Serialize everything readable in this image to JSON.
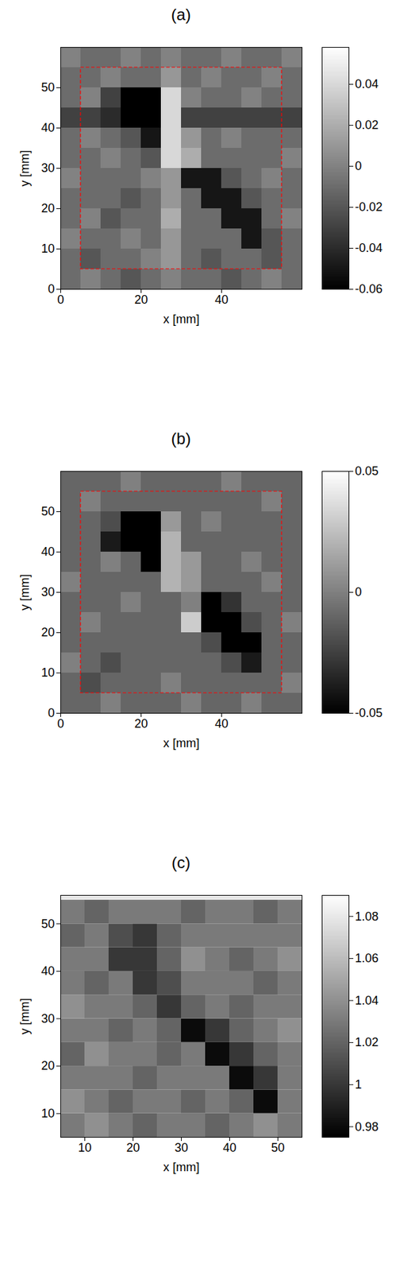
{
  "chart_data": [
    {
      "type": "heatmap",
      "title": "(a)",
      "x_label": "x [mm]",
      "y_label": "y [mm]",
      "xlim": [
        0,
        60
      ],
      "ylim": [
        0,
        60
      ],
      "xticks": [
        0,
        20,
        40
      ],
      "yticks": [
        0,
        10,
        20,
        30,
        40,
        50
      ],
      "color": "gray",
      "clim": [
        -0.06,
        0.058
      ],
      "cticks": [
        -0.06,
        -0.04,
        -0.02,
        0,
        0.02,
        0.04
      ],
      "rectangle": {
        "x": [
          5,
          55
        ],
        "y": [
          5,
          55
        ],
        "color": "#ff0000",
        "line_style": "dashed"
      },
      "x_edges": [
        0,
        5,
        10,
        15,
        20,
        25,
        30,
        35,
        40,
        45,
        50,
        55,
        60
      ],
      "y_edges": [
        0,
        5,
        10,
        15,
        20,
        25,
        30,
        35,
        40,
        45,
        50,
        55,
        60
      ],
      "z": [
        [
          -0.01,
          0,
          -0.01,
          -0.02,
          -0.01,
          0,
          -0.01,
          -0.01,
          -0.02,
          -0.01,
          0,
          -0.01
        ],
        [
          -0.01,
          -0.02,
          -0.01,
          -0.01,
          0,
          0.01,
          -0.01,
          -0.02,
          -0.01,
          -0.01,
          -0.02,
          -0.01
        ],
        [
          0,
          -0.01,
          -0.01,
          0,
          -0.01,
          0.01,
          -0.01,
          -0.01,
          -0.01,
          -0.05,
          -0.02,
          -0.01
        ],
        [
          -0.01,
          0,
          -0.02,
          -0.01,
          -0.01,
          0.02,
          -0.01,
          -0.01,
          -0.05,
          -0.05,
          -0.01,
          0
        ],
        [
          -0.01,
          -0.01,
          -0.01,
          -0.02,
          -0.01,
          0.01,
          -0.01,
          -0.05,
          -0.05,
          -0.02,
          -0.01,
          -0.01
        ],
        [
          0,
          -0.01,
          -0.01,
          -0.01,
          0,
          0.01,
          -0.05,
          -0.05,
          -0.02,
          -0.01,
          0,
          -0.01
        ],
        [
          -0.01,
          -0.01,
          0,
          -0.01,
          -0.02,
          0.04,
          0.02,
          -0.01,
          -0.01,
          -0.01,
          -0.01,
          0
        ],
        [
          -0.01,
          0,
          -0.01,
          -0.02,
          -0.05,
          0.04,
          0.01,
          -0.01,
          0,
          -0.01,
          -0.01,
          -0.01
        ],
        [
          -0.03,
          -0.03,
          -0.04,
          -0.06,
          -0.06,
          0.04,
          -0.03,
          -0.03,
          -0.03,
          -0.03,
          -0.03,
          -0.03
        ],
        [
          -0.01,
          0,
          -0.03,
          -0.06,
          -0.06,
          0.04,
          0,
          -0.01,
          -0.01,
          0,
          -0.01,
          -0.01
        ],
        [
          -0.01,
          -0.01,
          0,
          -0.01,
          -0.01,
          0.01,
          -0.01,
          0,
          -0.01,
          -0.01,
          0,
          -0.01
        ],
        [
          0,
          -0.01,
          -0.01,
          0,
          -0.01,
          0,
          -0.01,
          -0.01,
          0,
          -0.01,
          -0.01,
          0
        ]
      ]
    },
    {
      "type": "heatmap",
      "title": "(b)",
      "x_label": "x [mm]",
      "y_label": "y [mm]",
      "xlim": [
        0,
        60
      ],
      "ylim": [
        0,
        60
      ],
      "xticks": [
        0,
        20,
        40
      ],
      "yticks": [
        0,
        10,
        20,
        30,
        40,
        50
      ],
      "color": "gray",
      "clim": [
        -0.05,
        0.05
      ],
      "cticks": [
        -0.05,
        0,
        0.05
      ],
      "rectangle": {
        "x": [
          5,
          55
        ],
        "y": [
          5,
          55
        ],
        "color": "#ff0000",
        "line_style": "dashed"
      },
      "x_edges": [
        0,
        5,
        10,
        15,
        20,
        25,
        30,
        35,
        40,
        45,
        50,
        55,
        60
      ],
      "y_edges": [
        0,
        5,
        10,
        15,
        20,
        25,
        30,
        35,
        40,
        45,
        50,
        55,
        60
      ],
      "z": [
        [
          -0.01,
          -0.01,
          0,
          -0.01,
          -0.01,
          -0.01,
          0,
          -0.01,
          -0.01,
          0,
          -0.01,
          -0.01
        ],
        [
          -0.01,
          -0.02,
          -0.01,
          -0.01,
          -0.01,
          0,
          -0.01,
          -0.01,
          -0.01,
          -0.01,
          -0.01,
          0
        ],
        [
          0,
          -0.01,
          -0.02,
          -0.01,
          -0.01,
          -0.01,
          -0.01,
          -0.01,
          -0.02,
          -0.04,
          -0.01,
          -0.01
        ],
        [
          -0.01,
          -0.01,
          -0.01,
          -0.01,
          -0.01,
          -0.01,
          -0.01,
          -0.02,
          -0.05,
          -0.05,
          -0.01,
          -0.01
        ],
        [
          -0.01,
          0,
          -0.01,
          -0.01,
          -0.01,
          -0.01,
          0.03,
          -0.05,
          -0.05,
          -0.02,
          -0.01,
          0
        ],
        [
          -0.01,
          -0.01,
          -0.01,
          0,
          -0.01,
          -0.01,
          0,
          -0.05,
          -0.03,
          -0.01,
          -0.01,
          -0.01
        ],
        [
          0,
          -0.01,
          -0.01,
          -0.01,
          -0.01,
          0.02,
          0.01,
          -0.01,
          -0.01,
          -0.01,
          0,
          -0.01
        ],
        [
          -0.01,
          -0.01,
          0,
          -0.01,
          -0.05,
          0.02,
          0.01,
          -0.01,
          -0.01,
          0,
          -0.01,
          -0.01
        ],
        [
          -0.01,
          -0.01,
          -0.04,
          -0.05,
          -0.05,
          0.02,
          -0.01,
          -0.01,
          -0.01,
          -0.01,
          -0.01,
          -0.01
        ],
        [
          -0.01,
          -0.01,
          -0.02,
          -0.05,
          -0.05,
          0.01,
          -0.01,
          0,
          -0.01,
          -0.01,
          -0.01,
          -0.01
        ],
        [
          -0.01,
          0,
          -0.01,
          -0.01,
          -0.01,
          -0.01,
          -0.01,
          -0.01,
          -0.01,
          -0.01,
          0,
          -0.01
        ],
        [
          -0.01,
          -0.01,
          -0.01,
          0,
          -0.01,
          -0.01,
          -0.01,
          -0.01,
          0,
          -0.01,
          -0.01,
          -0.01
        ]
      ]
    },
    {
      "type": "heatmap",
      "title": "(c)",
      "x_label": "x [mm]",
      "y_label": "y [mm]",
      "xlim": [
        5,
        55
      ],
      "ylim": [
        5,
        56
      ],
      "xticks": [
        10,
        20,
        30,
        40,
        50
      ],
      "yticks": [
        10,
        20,
        30,
        40,
        50
      ],
      "color": "gray",
      "clim": [
        0.975,
        1.09
      ],
      "cticks": [
        0.98,
        1,
        1.02,
        1.04,
        1.06,
        1.08
      ],
      "x_edges": [
        5,
        10,
        15,
        20,
        25,
        30,
        35,
        40,
        45,
        50,
        55
      ],
      "y_edges": [
        5,
        10,
        15,
        20,
        25,
        30,
        35,
        40,
        45,
        50,
        55,
        56
      ],
      "z": [
        [
          1.03,
          1.04,
          1.03,
          1.02,
          1.03,
          1.03,
          1.02,
          1.03,
          1.04,
          1.03
        ],
        [
          1.04,
          1.03,
          1.02,
          1.03,
          1.03,
          1.02,
          1.03,
          1.02,
          0.98,
          1.03
        ],
        [
          1.03,
          1.03,
          1.03,
          1.02,
          1.03,
          1.03,
          1.03,
          0.98,
          1.0,
          1.03
        ],
        [
          1.02,
          1.04,
          1.03,
          1.03,
          1.02,
          1.03,
          0.98,
          1.0,
          1.02,
          1.03
        ],
        [
          1.03,
          1.03,
          1.02,
          1.03,
          1.02,
          0.98,
          1.0,
          1.02,
          1.03,
          1.04
        ],
        [
          1.04,
          1.03,
          1.03,
          1.02,
          1.0,
          1.02,
          1.03,
          1.02,
          1.03,
          1.03
        ],
        [
          1.03,
          1.02,
          1.03,
          1.0,
          1.01,
          1.03,
          1.03,
          1.03,
          1.02,
          1.03
        ],
        [
          1.03,
          1.03,
          1.0,
          1.0,
          1.02,
          1.04,
          1.03,
          1.02,
          1.03,
          1.04
        ],
        [
          1.02,
          1.03,
          1.01,
          1.0,
          1.02,
          1.03,
          1.03,
          1.03,
          1.03,
          1.03
        ],
        [
          1.03,
          1.02,
          1.03,
          1.03,
          1.03,
          1.02,
          1.03,
          1.03,
          1.02,
          1.03
        ],
        [
          1.08,
          1.08,
          1.08,
          1.08,
          1.08,
          1.08,
          1.08,
          1.08,
          1.08,
          1.08
        ]
      ]
    }
  ]
}
